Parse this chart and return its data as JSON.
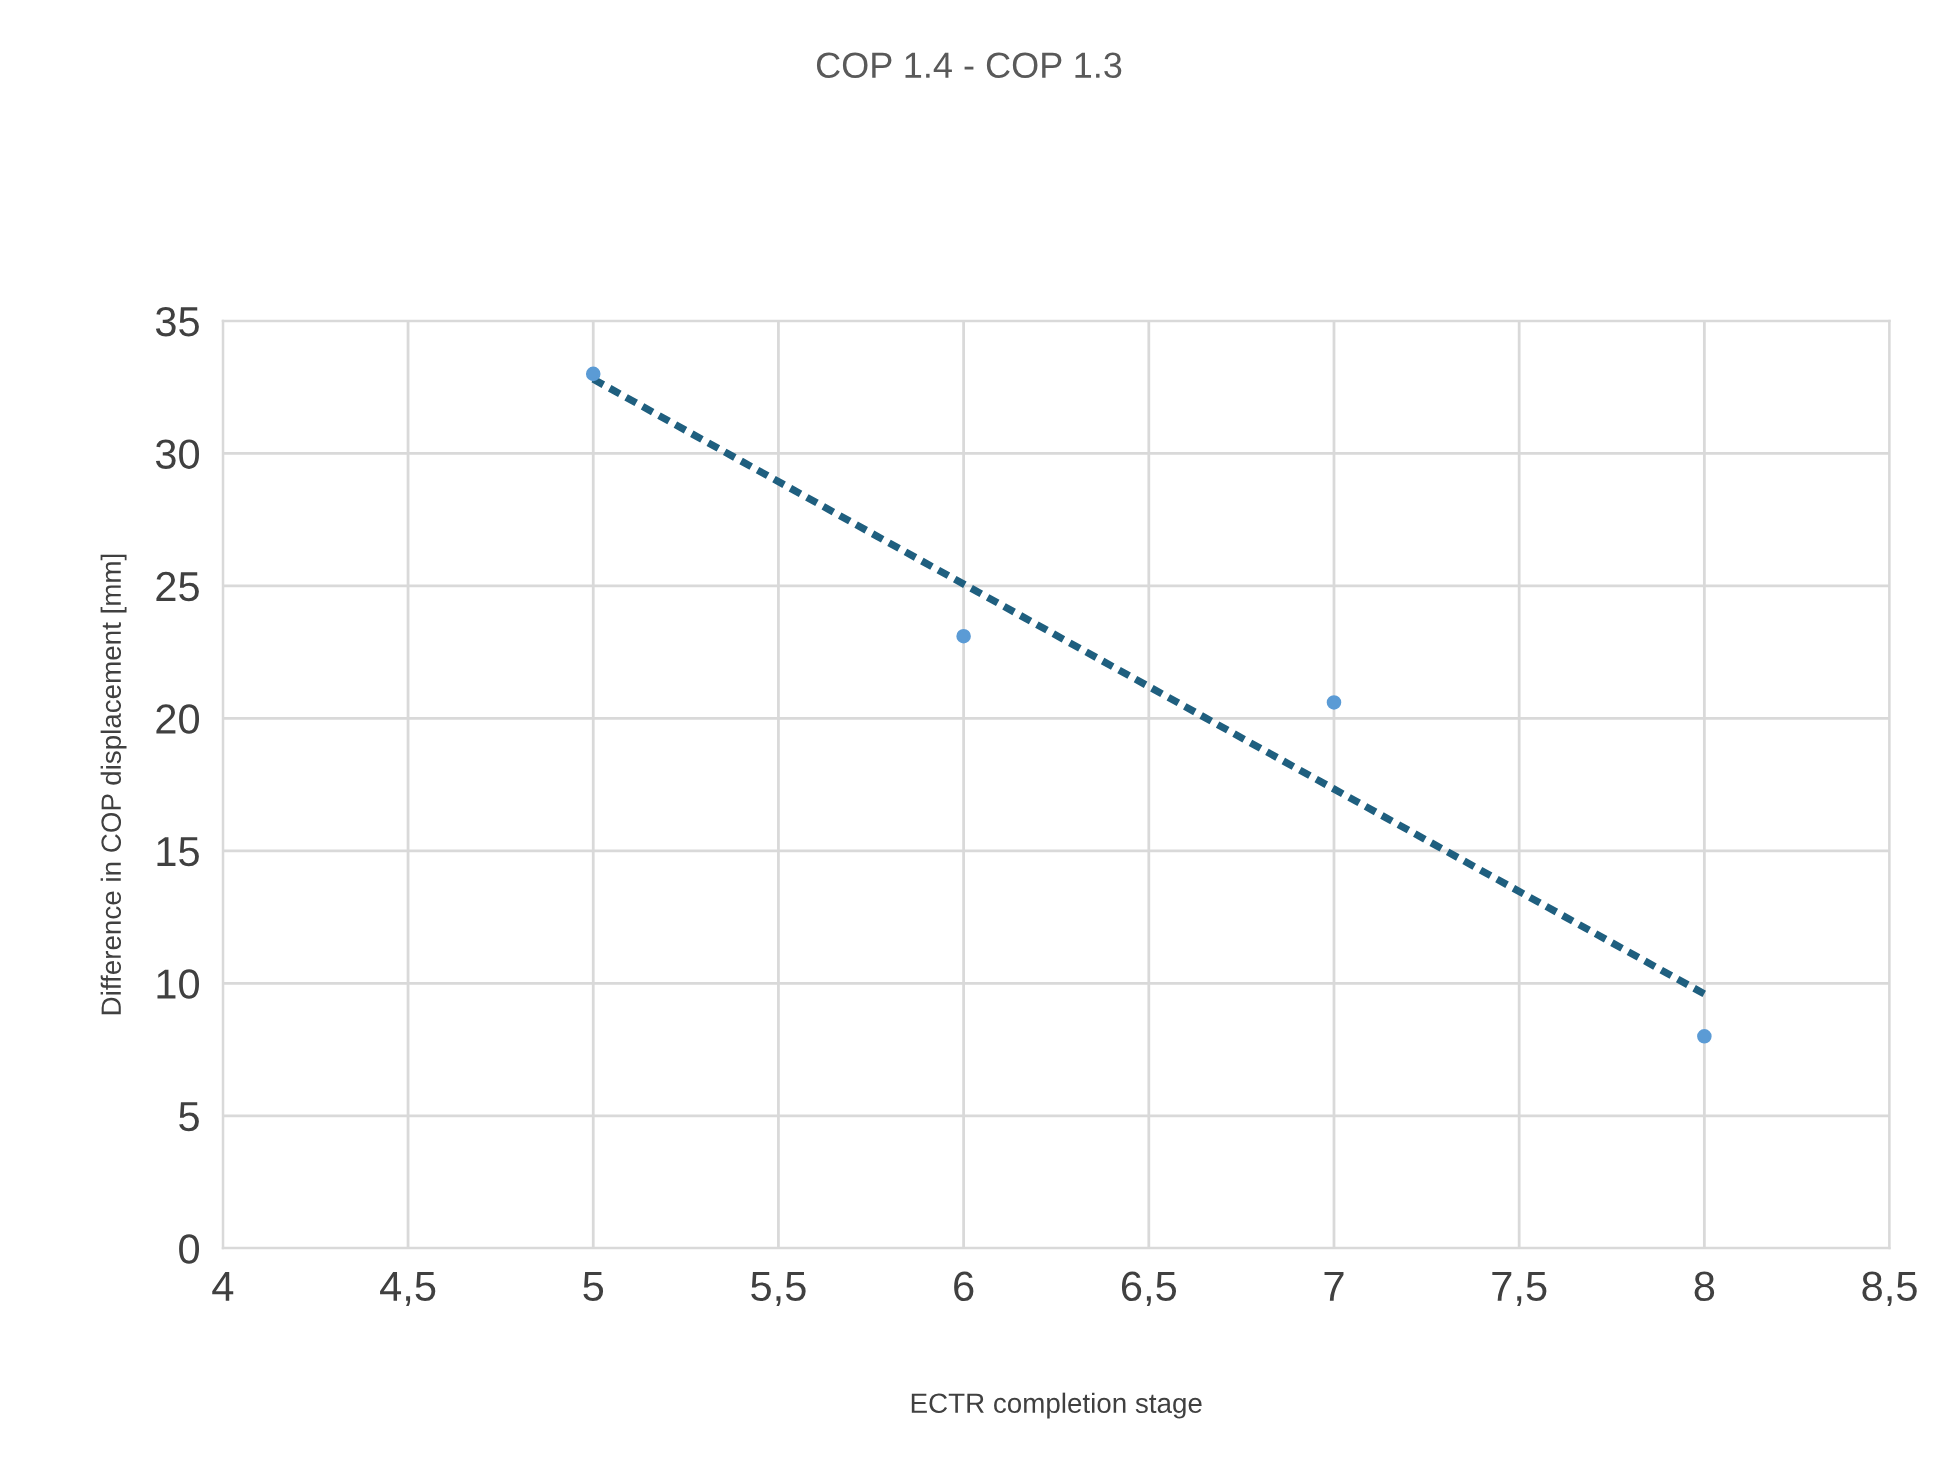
{
  "chart_data": {
    "type": "scatter",
    "title": "COP 1.4 - COP 1.3",
    "xlabel": "ECTR completion stage",
    "ylabel": "Difference in COP displacement [mm]",
    "series": [
      {
        "color": "#5b9bd5",
        "x": [
          5,
          6,
          7,
          8
        ],
        "values": [
          33.0,
          23.1,
          20.6,
          8.0
        ],
        "marker": "circle"
      },
      {
        "type": "line",
        "color": "#1f5f7f",
        "x": [
          5,
          8
        ],
        "values": [
          32.8,
          9.6
        ],
        "line_style": "dotted",
        "marker": "none"
      }
    ],
    "xlim": [
      4,
      8.5
    ],
    "xticks": [
      4,
      {
        "value": 4.5,
        "label": "4,5"
      },
      5,
      {
        "value": 5.5,
        "label": "5,5"
      },
      6,
      {
        "value": 6.5,
        "label": "6,5"
      },
      7,
      {
        "value": 7.5,
        "label": "7,5"
      },
      8,
      {
        "value": 8.5,
        "label": "8,5"
      }
    ],
    "ylim": [
      0,
      35
    ],
    "yticks": [
      0,
      5,
      10,
      15,
      20,
      25,
      30,
      35
    ],
    "grid": true,
    "legend": false
  }
}
